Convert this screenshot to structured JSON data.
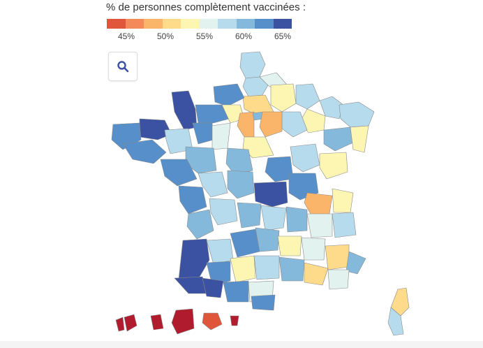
{
  "legend": {
    "title": "% de personnes complètement vaccinées :",
    "colors": [
      "#e0563b",
      "#f4895a",
      "#fbb56a",
      "#fedb8b",
      "#fdf6b3",
      "#e2f3ef",
      "#b6dbec",
      "#84b9db",
      "#568fca",
      "#3b52a3"
    ],
    "ticks": [
      "45%",
      "50%",
      "55%",
      "60%",
      "65%"
    ]
  },
  "zoom_button": {
    "icon": "search-icon"
  }
}
